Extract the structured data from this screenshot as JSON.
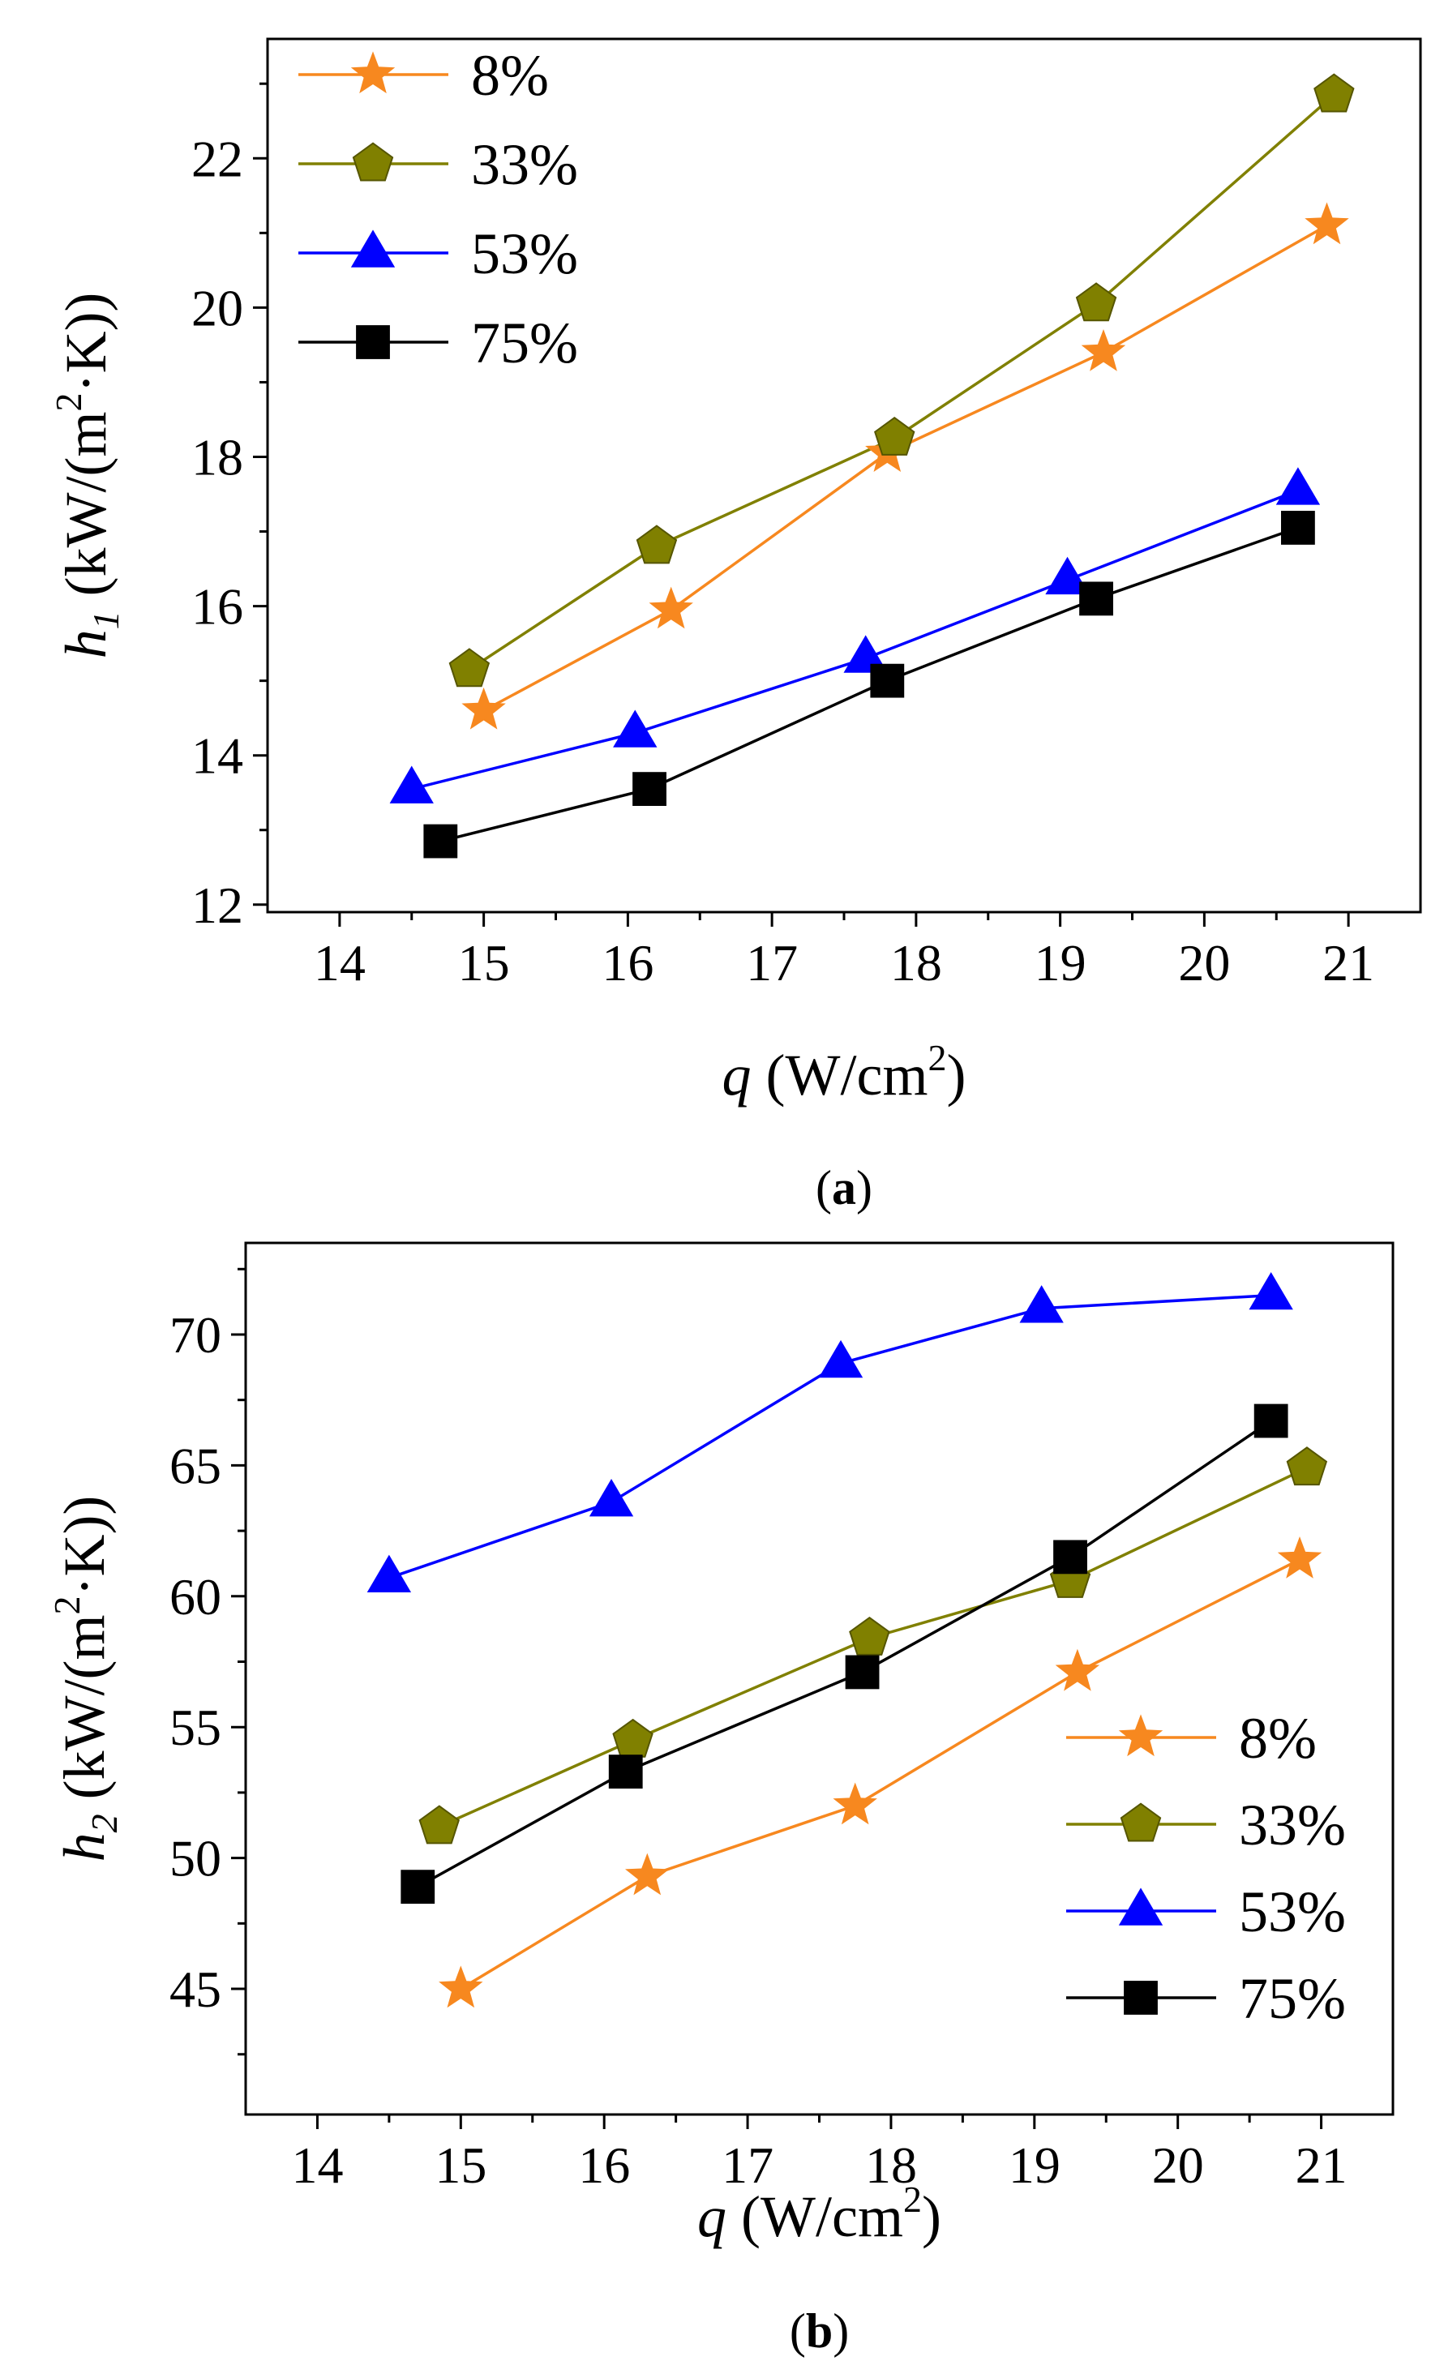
{
  "chart_data": [
    {
      "type": "line",
      "panel_label": {
        "open": "(",
        "letter": "a",
        "close": ")"
      },
      "xlabel": {
        "var": "q",
        "text": " (W/cm",
        "sup": "2",
        "end": ")"
      },
      "ylabel": {
        "var": "h",
        "sub": "1",
        "text": " (kW/(m",
        "sup": "2",
        "end": "·K))"
      },
      "xlim": [
        13.5,
        21.5
      ],
      "ylim": [
        11.9,
        23.6
      ],
      "xticks": [
        14,
        15,
        16,
        17,
        18,
        19,
        20,
        21
      ],
      "xtick_labels": [
        "14",
        "15",
        "16",
        "17",
        "18",
        "19",
        "20",
        "21"
      ],
      "yticks": [
        12,
        14,
        16,
        18,
        20,
        22
      ],
      "ytick_labels": [
        "12",
        "14",
        "16",
        "18",
        "20",
        "22"
      ],
      "legend_position": "top-left",
      "series": [
        {
          "name": "8%",
          "marker": "star",
          "color": "#F7881F",
          "x": [
            15.0,
            16.3,
            17.8,
            19.3,
            20.85
          ],
          "y": [
            14.6,
            15.95,
            18.05,
            19.4,
            21.1
          ]
        },
        {
          "name": "33%",
          "marker": "pentagon",
          "color": "#808000",
          "x": [
            14.9,
            16.2,
            17.85,
            19.25,
            20.9
          ],
          "y": [
            15.15,
            16.8,
            18.25,
            20.05,
            22.85
          ]
        },
        {
          "name": "53%",
          "marker": "triangle",
          "color": "#0000FF",
          "x": [
            14.5,
            16.05,
            17.65,
            19.05,
            20.65
          ],
          "y": [
            13.55,
            14.3,
            15.3,
            16.35,
            17.55
          ]
        },
        {
          "name": "75%",
          "marker": "square",
          "color": "#000000",
          "x": [
            14.7,
            16.15,
            17.8,
            19.25,
            20.65
          ],
          "y": [
            12.85,
            13.55,
            15.0,
            16.1,
            17.05
          ]
        }
      ]
    },
    {
      "type": "line",
      "panel_label": {
        "open": "(",
        "letter": "b",
        "close": ")"
      },
      "xlabel": {
        "var": "q",
        "text": " (W/cm",
        "sup": "2",
        "end": ")"
      },
      "ylabel": {
        "var": "h",
        "sub": "2",
        "text": " (kW/(m",
        "sup": "2",
        "end": "·K))"
      },
      "xlim": [
        13.5,
        21.5
      ],
      "ylim": [
        40.2,
        73.5
      ],
      "xticks": [
        14,
        15,
        16,
        17,
        18,
        19,
        20,
        21
      ],
      "xtick_labels": [
        "14",
        "15",
        "16",
        "17",
        "18",
        "19",
        "20",
        "21"
      ],
      "yticks": [
        45,
        50,
        55,
        60,
        65,
        70
      ],
      "ytick_labels": [
        "45",
        "50",
        "55",
        "60",
        "65",
        "70"
      ],
      "legend_position": "bottom-right",
      "series": [
        {
          "name": "8%",
          "marker": "star",
          "color": "#F7881F",
          "x": [
            15.0,
            16.3,
            17.75,
            19.3,
            20.85
          ],
          "y": [
            45.0,
            49.3,
            52.0,
            57.1,
            61.4
          ]
        },
        {
          "name": "33%",
          "marker": "pentagon",
          "color": "#808000",
          "x": [
            14.85,
            16.2,
            17.85,
            19.25,
            20.9
          ],
          "y": [
            51.2,
            54.5,
            58.4,
            60.6,
            64.9
          ]
        },
        {
          "name": "53%",
          "marker": "triangle",
          "color": "#0000FF",
          "x": [
            14.5,
            16.05,
            17.65,
            19.05,
            20.65
          ],
          "y": [
            60.7,
            63.6,
            68.9,
            71.0,
            71.5
          ]
        },
        {
          "name": "75%",
          "marker": "square",
          "color": "#000000",
          "x": [
            14.7,
            16.15,
            17.8,
            19.25,
            20.65
          ],
          "y": [
            48.9,
            53.3,
            57.1,
            61.5,
            66.7
          ]
        }
      ]
    }
  ]
}
